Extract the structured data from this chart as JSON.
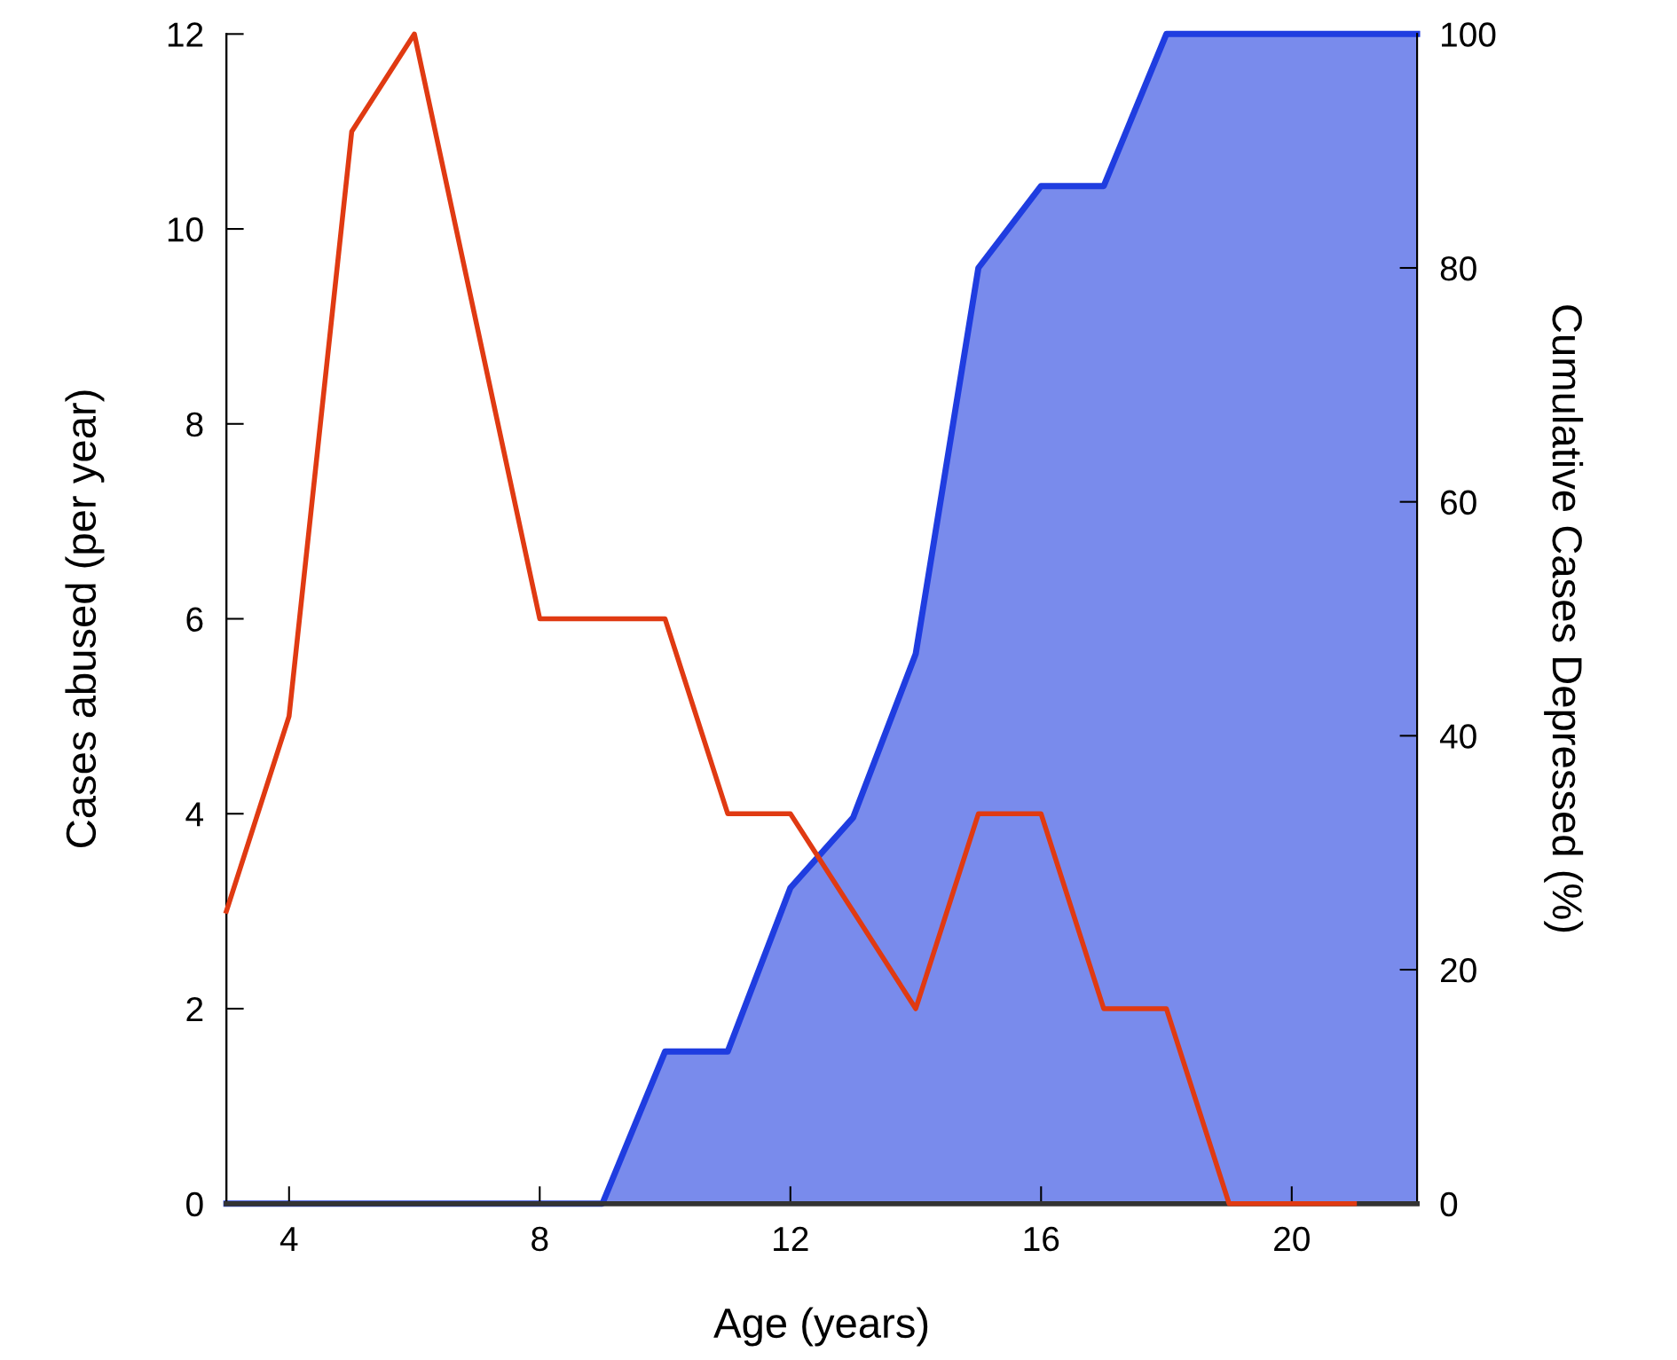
{
  "chart_data": {
    "type": "line",
    "xlabel": "Age (years)",
    "ylabel": "Cases abused (per year)",
    "y2label": "Cumulative Cases Depressed (%)",
    "series": [
      {
        "type": "area",
        "axis": "y2",
        "color": "#1f3de0",
        "x": [
          3,
          4,
          5,
          6,
          7,
          8,
          9,
          10,
          11,
          12,
          13,
          14,
          15,
          16,
          17,
          18,
          19,
          20,
          21,
          22
        ],
        "values": [
          0,
          0,
          0,
          0,
          0,
          0,
          0,
          13,
          13,
          27,
          33,
          47,
          80,
          87,
          87,
          100,
          100,
          100,
          100,
          100
        ]
      },
      {
        "color": "#e03a12",
        "x": [
          3,
          4,
          5,
          6,
          7,
          8,
          9,
          10,
          11,
          12,
          13,
          14,
          15,
          16,
          17,
          18,
          19,
          20,
          21
        ],
        "values": [
          3,
          5,
          11,
          12,
          9,
          6,
          6,
          6,
          4,
          4,
          3,
          2,
          4,
          4,
          2,
          2,
          0,
          0,
          0
        ]
      }
    ],
    "xlim": [
      3,
      22
    ],
    "xticks": [
      4,
      8,
      12,
      16,
      20
    ],
    "ylim": [
      0,
      12
    ],
    "yticks": [
      0,
      2,
      4,
      6,
      8,
      10,
      12
    ],
    "y2lim": [
      0,
      100
    ],
    "y2ticks": [
      0,
      20,
      40,
      60,
      80,
      100
    ],
    "grid": false,
    "marker": "none",
    "line_style": "solid"
  }
}
